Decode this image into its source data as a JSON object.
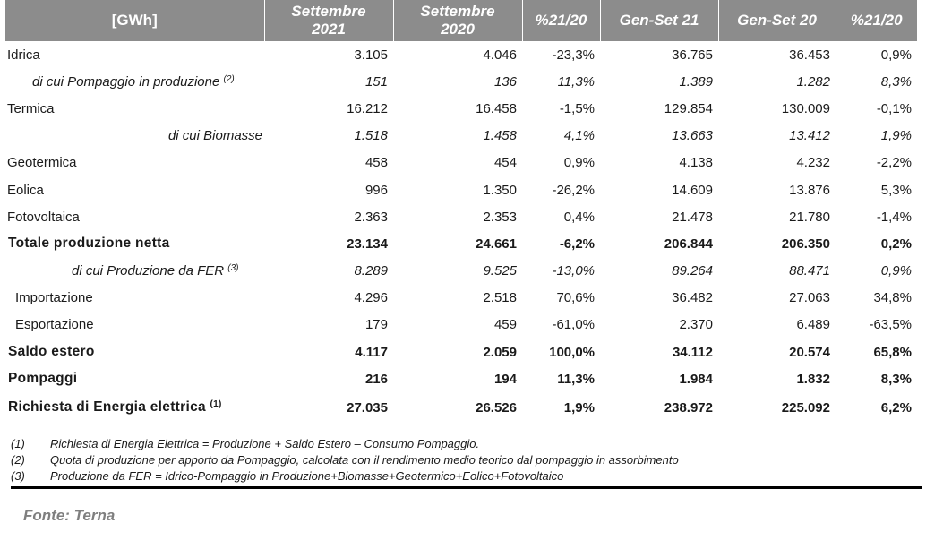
{
  "headers": [
    {
      "line1": "[GWh]",
      "line2": ""
    },
    {
      "line1": "Settembre",
      "line2": "2021"
    },
    {
      "line1": "Settembre",
      "line2": "2020"
    },
    {
      "line1": "%21/20",
      "line2": ""
    },
    {
      "line1": "Gen-Set 21",
      "line2": ""
    },
    {
      "line1": "Gen-Set 20",
      "line2": ""
    },
    {
      "line1": "%21/20",
      "line2": ""
    }
  ],
  "rows": [
    {
      "label": "Idrica",
      "sup": "",
      "cells": [
        "3.105",
        "4.046",
        "-23,3%",
        "36.765",
        "36.453",
        "0,9%"
      ]
    },
    {
      "label": "di cui Pompaggio in produzione",
      "sup": "(2)",
      "cells": [
        "151",
        "136",
        "11,3%",
        "1.389",
        "1.282",
        "8,3%"
      ]
    },
    {
      "label": "Termica",
      "sup": "",
      "cells": [
        "16.212",
        "16.458",
        "-1,5%",
        "129.854",
        "130.009",
        "-0,1%"
      ]
    },
    {
      "label": "di cui Biomasse",
      "sup": "",
      "cells": [
        "1.518",
        "1.458",
        "4,1%",
        "13.663",
        "13.412",
        "1,9%"
      ]
    },
    {
      "label": "Geotermica",
      "sup": "",
      "cells": [
        "458",
        "454",
        "0,9%",
        "4.138",
        "4.232",
        "-2,2%"
      ]
    },
    {
      "label": "Eolica",
      "sup": "",
      "cells": [
        "996",
        "1.350",
        "-26,2%",
        "14.609",
        "13.876",
        "5,3%"
      ]
    },
    {
      "label": "Fotovoltaica",
      "sup": "",
      "cells": [
        "2.363",
        "2.353",
        "0,4%",
        "21.478",
        "21.780",
        "-1,4%"
      ]
    },
    {
      "label": "Totale produzione netta",
      "sup": "",
      "cells": [
        "23.134",
        "24.661",
        "-6,2%",
        "206.844",
        "206.350",
        "0,2%"
      ]
    },
    {
      "label": "di cui Produzione da FER",
      "sup": "(3)",
      "cells": [
        "8.289",
        "9.525",
        "-13,0%",
        "89.264",
        "88.471",
        "0,9%"
      ]
    },
    {
      "label": "Importazione",
      "sup": "",
      "cells": [
        "4.296",
        "2.518",
        "70,6%",
        "36.482",
        "27.063",
        "34,8%"
      ]
    },
    {
      "label": "Esportazione",
      "sup": "",
      "cells": [
        "179",
        "459",
        "-61,0%",
        "2.370",
        "6.489",
        "-63,5%"
      ]
    },
    {
      "label": "Saldo estero",
      "sup": "",
      "cells": [
        "4.117",
        "2.059",
        "100,0%",
        "34.112",
        "20.574",
        "65,8%"
      ]
    },
    {
      "label": "Pompaggi",
      "sup": "",
      "cells": [
        "216",
        "194",
        "11,3%",
        "1.984",
        "1.832",
        "8,3%"
      ]
    },
    {
      "label": "Richiesta di Energia elettrica",
      "sup": "(1)",
      "cells": [
        "27.035",
        "26.526",
        "1,9%",
        "238.972",
        "225.092",
        "6,2%"
      ]
    }
  ],
  "notes": [
    {
      "num": "(1)",
      "text": "Richiesta di Energia Elettrica = Produzione + Saldo Estero – Consumo Pompaggio."
    },
    {
      "num": "(2)",
      "text": "Quota di produzione per apporto da Pompaggio, calcolata con il rendimento medio teorico dal pompaggio in assorbimento"
    },
    {
      "num": "(3)",
      "text": "Produzione da FER = Idrico-Pompaggio in Produzione+Biomasse+Geotermico+Eolico+Fotovoltaico"
    }
  ],
  "source": "Fonte: Terna"
}
